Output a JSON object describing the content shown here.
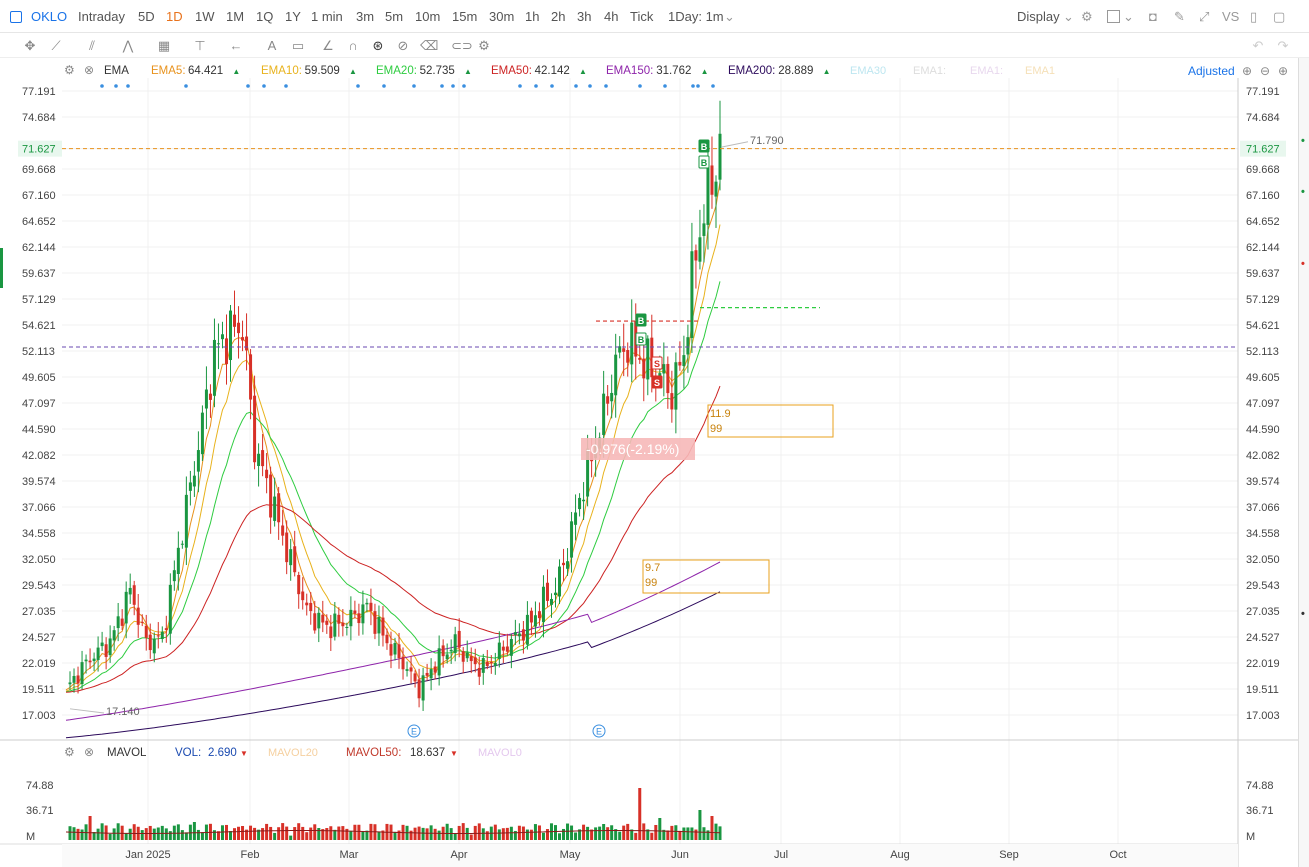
{
  "toolbar": {
    "symbol": "OKLO",
    "intervals": [
      "Intraday",
      "5D",
      "1D",
      "1W",
      "1M",
      "1Q",
      "1Y",
      "1 min",
      "3m",
      "5m",
      "10m",
      "15m",
      "30m",
      "1h",
      "2h",
      "3h",
      "4h",
      "Tick"
    ],
    "active_interval": "1D",
    "period_select": "1Day: 1m",
    "display_label": "Display",
    "vs_label": "VS"
  },
  "drawing_tools": [
    "crosshair-icon",
    "trendline-icon",
    "channel-icon",
    "zigzag-icon",
    "pattern-icon",
    "fib-icon",
    "arrow-icon",
    "text-icon",
    "callout-icon",
    "ruler-icon",
    "arc-icon",
    "magnet-icon",
    "hide-icon",
    "trash-icon",
    "link-icon",
    "settings-icon"
  ],
  "legend": {
    "indicator": "EMA",
    "items": [
      {
        "label": "EMA5:",
        "value": "64.421",
        "color": "#e8921c"
      },
      {
        "label": "EMA10:",
        "value": "59.509",
        "color": "#e8b21c"
      },
      {
        "label": "EMA20:",
        "value": "52.735",
        "color": "#2ecc40"
      },
      {
        "label": "EMA50:",
        "value": "42.142",
        "color": "#cc2222"
      },
      {
        "label": "EMA150:",
        "value": "31.762",
        "color": "#8e24aa"
      },
      {
        "label": "EMA200:",
        "value": "28.889",
        "color": "#2c0a5c"
      }
    ],
    "faded": [
      "EMA30",
      "EMA1:",
      "EMA1:",
      "EMA1"
    ],
    "adjusted": "Adjusted"
  },
  "price_axis": [
    "77.191",
    "74.684",
    "71.627",
    "69.668",
    "67.160",
    "64.652",
    "62.144",
    "59.637",
    "57.129",
    "54.621",
    "52.113",
    "49.605",
    "47.097",
    "44.590",
    "42.082",
    "39.574",
    "37.066",
    "34.558",
    "32.050",
    "29.543",
    "27.035",
    "24.527",
    "22.019",
    "19.511",
    "17.003"
  ],
  "current_price": "71.627",
  "high_label": "71.790",
  "low_label": "17.140",
  "change_label": "-0.976(-2.19%)",
  "box1": {
    "line1": "11.9",
    "line2": "99"
  },
  "box2": {
    "line1": "9.7",
    "line2": "99"
  },
  "signals": {
    "buy": "B",
    "sell": "S"
  },
  "earnings_marker": "E",
  "volume_legend": {
    "indicator": "MAVOL",
    "vol_label": "VOL:",
    "vol_value": "2.690",
    "mavol20": "MAVOL20",
    "mavol50_label": "MAVOL50:",
    "mavol50_value": "18.637",
    "mavol0": "MAVOL0"
  },
  "volume_axis": [
    "74.88",
    "36.71",
    "M"
  ],
  "months": [
    "Jan 2025",
    "Feb",
    "Mar",
    "Apr",
    "May",
    "Jun",
    "Jul",
    "Aug",
    "Sep",
    "Oct"
  ],
  "colors": {
    "up": "#1a9641",
    "down": "#d73027",
    "accent": "#e8721c",
    "link": "#1a73e8"
  },
  "chart_data": {
    "type": "candlestick",
    "ylim": [
      17.003,
      77.191
    ],
    "high": 71.79,
    "low": 17.14,
    "last": 71.627
  }
}
